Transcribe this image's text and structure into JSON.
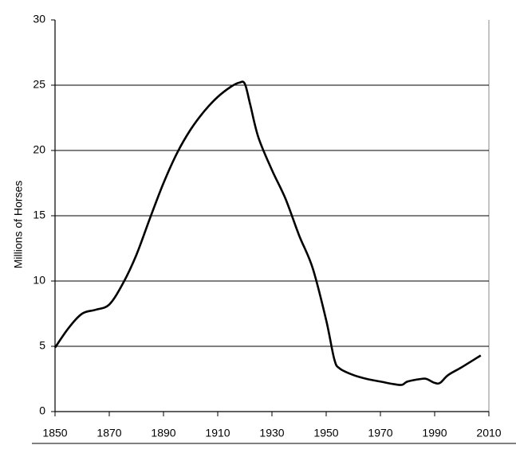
{
  "chart_data": {
    "type": "line",
    "y_label": "Millions of Horses",
    "series": [
      {
        "name": "Horses",
        "color": "#000000",
        "x": [
          1850,
          1855,
          1860,
          1865,
          1870,
          1875,
          1880,
          1885,
          1890,
          1895,
          1900,
          1905,
          1910,
          1915,
          1918,
          1920,
          1922,
          1925,
          1930,
          1935,
          1940,
          1945,
          1950,
          1953,
          1955,
          1960,
          1965,
          1970,
          1975,
          1978,
          1980,
          1985,
          1987,
          1990,
          1992,
          1995,
          2000,
          2007
        ],
        "values": [
          4.9,
          6.4,
          7.5,
          7.8,
          8.2,
          9.8,
          12,
          14.8,
          17.5,
          19.8,
          21.6,
          23,
          24.1,
          24.9,
          25.2,
          25.1,
          23.5,
          21,
          18.5,
          16.3,
          13.5,
          11,
          7,
          4,
          3.3,
          2.8,
          2.5,
          2.3,
          2.1,
          2.05,
          2.3,
          2.5,
          2.5,
          2.2,
          2.2,
          2.8,
          3.4,
          4.3
        ]
      }
    ],
    "xlim": [
      1850,
      2010
    ],
    "xticks": [
      1850,
      1870,
      1890,
      1910,
      1930,
      1950,
      1970,
      1990,
      2010
    ],
    "ylim": [
      0,
      30
    ],
    "yticks": [
      0,
      5,
      10,
      15,
      20,
      25,
      30
    ],
    "grid": true
  }
}
